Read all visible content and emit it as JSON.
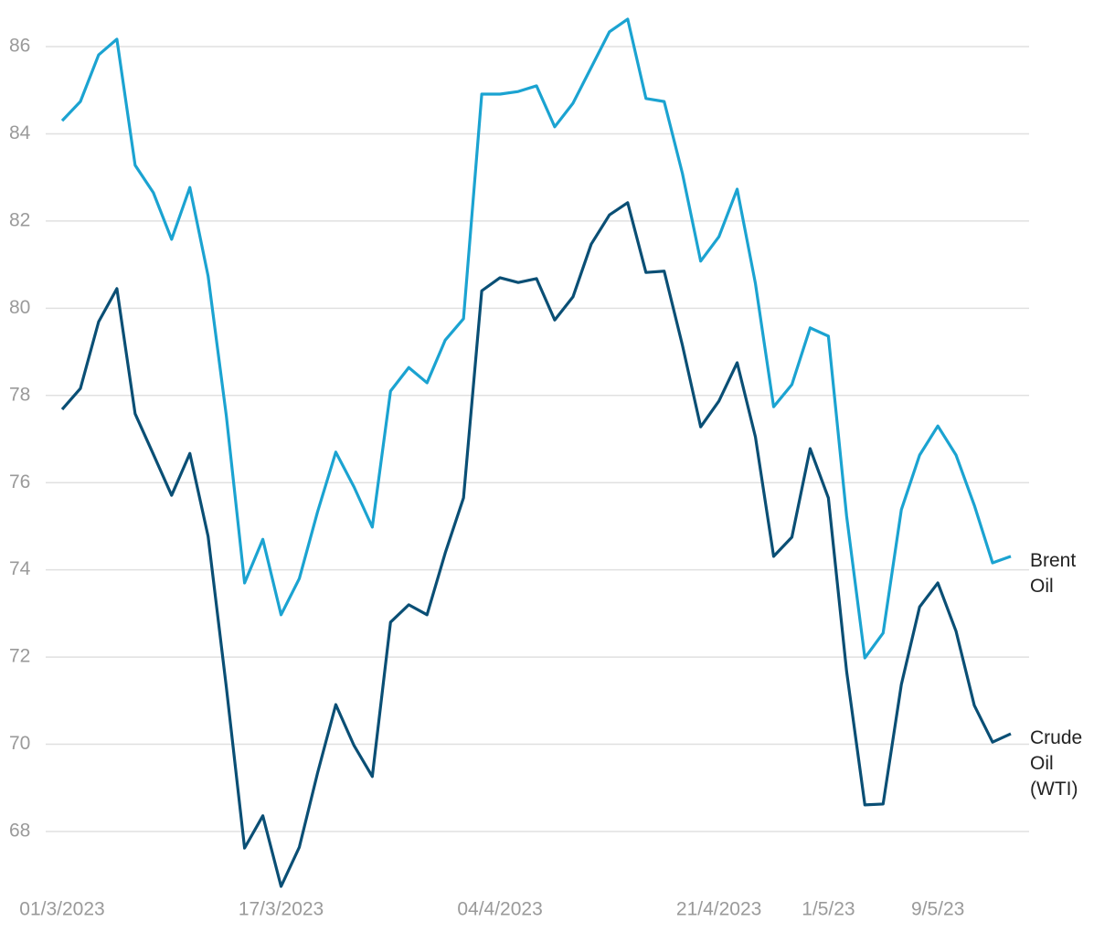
{
  "chart_data": {
    "type": "line",
    "categories": [
      "01/3/2023",
      null,
      null,
      null,
      null,
      null,
      null,
      null,
      null,
      null,
      null,
      null,
      "17/3/2023",
      null,
      null,
      null,
      null,
      null,
      null,
      null,
      null,
      null,
      null,
      null,
      "04/4/2023",
      null,
      null,
      null,
      null,
      null,
      null,
      null,
      null,
      null,
      null,
      null,
      "21/4/2023",
      null,
      null,
      null,
      null,
      null,
      "1/5/23",
      null,
      null,
      null,
      null,
      null,
      "9/5/23",
      null,
      null,
      null,
      null
    ],
    "series": [
      {
        "name": "Brent Oil",
        "color": "#1ba3d1",
        "values": [
          84.3,
          84.74,
          85.81,
          86.17,
          83.28,
          82.65,
          81.58,
          82.77,
          80.74,
          77.53,
          73.7,
          74.7,
          72.97,
          73.8,
          75.33,
          76.7,
          75.9,
          74.98,
          78.1,
          78.64,
          78.29,
          79.27,
          79.76,
          84.91,
          84.91,
          84.97,
          85.1,
          84.16,
          84.7,
          85.52,
          86.34,
          86.63,
          84.81,
          84.74,
          83.09,
          81.08,
          81.64,
          82.73,
          80.57,
          77.74,
          78.25,
          79.55,
          79.36,
          75.23,
          71.98,
          72.55,
          75.38,
          76.63,
          77.3,
          76.63,
          75.48,
          74.16,
          74.31
        ]
      },
      {
        "name": "Crude Oil (WTI)",
        "color": "#0a4f75",
        "values": [
          77.68,
          78.16,
          79.69,
          80.45,
          77.58,
          76.65,
          75.71,
          76.67,
          74.77,
          71.31,
          67.62,
          68.36,
          66.74,
          67.64,
          69.34,
          70.91,
          69.97,
          69.26,
          72.8,
          73.2,
          72.97,
          74.39,
          75.65,
          80.4,
          80.7,
          80.59,
          80.68,
          79.73,
          80.26,
          81.47,
          82.14,
          82.42,
          80.82,
          80.85,
          79.15,
          77.28,
          77.87,
          78.75,
          77.05,
          74.31,
          74.75,
          76.78,
          75.65,
          71.67,
          68.61,
          68.63,
          71.37,
          73.15,
          73.7,
          72.59,
          70.89,
          70.05,
          70.24
        ]
      }
    ],
    "ylim": [
      66.5,
      87
    ],
    "yticks": [
      68,
      70,
      72,
      74,
      76,
      78,
      80,
      82,
      84,
      86
    ],
    "grid": true
  }
}
